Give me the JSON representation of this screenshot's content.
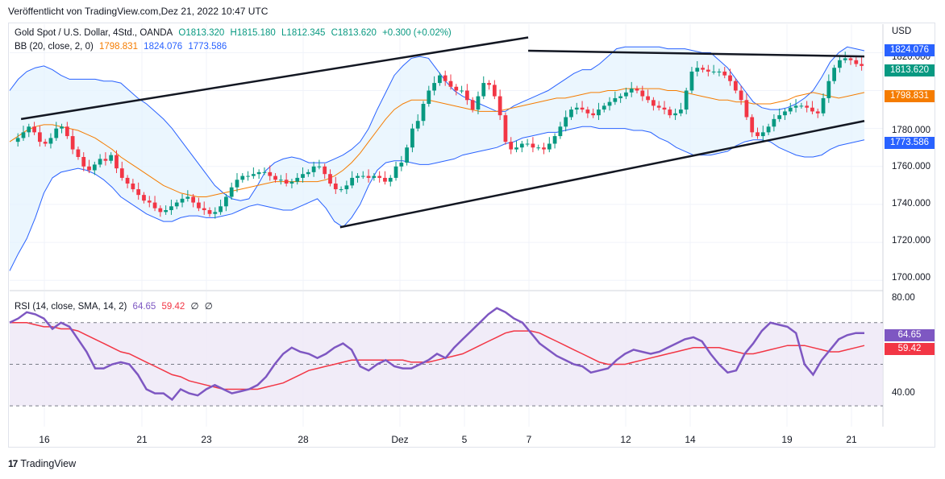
{
  "header": {
    "published": "Veröffentlicht von TradingView.com,Dez 21, 2022 10:47 UTC"
  },
  "legend": {
    "symbol": "Gold Spot / U.S. Dollar, 4Std., OANDA",
    "o": "O1813.320",
    "h": "H1815.180",
    "l": "L1812.345",
    "c": "C1813.620",
    "chg": "+0.300 (+0.02%)",
    "bb_label": "BB (20, close, 2, 0)",
    "bb_basis": "1798.831",
    "bb_upper": "1824.076",
    "bb_lower": "1773.586",
    "rsi_label": "RSI (14, close, SMA, 14, 2)",
    "rsi_value": "64.65",
    "rsi_sma": "59.42",
    "rsi_extra1": "∅",
    "rsi_extra2": "∅"
  },
  "price_axis": {
    "currency": "USD",
    "ticks": [
      "1820.000",
      "1780.000",
      "1760.000",
      "1740.000",
      "1720.000",
      "1700.000"
    ],
    "tags": {
      "upper": "1824.076",
      "last": "1813.620",
      "basis": "1798.831",
      "lower": "1773.586"
    }
  },
  "rsi_axis": {
    "ticks": [
      "80.00",
      "40.00"
    ],
    "tags": {
      "rsi": "64.65",
      "sma": "59.42"
    }
  },
  "time_axis": [
    "16",
    "21",
    "23",
    "28",
    "Dez",
    "5",
    "7",
    "12",
    "14",
    "19",
    "21"
  ],
  "footer": {
    "brand": "TradingView"
  },
  "colors": {
    "up": "#089981",
    "down": "#f23645",
    "bb_upper": "#2962ff",
    "bb_basis": "#f57c00",
    "bb_fill": "#e3f2fd",
    "rsi": "#7e57c2",
    "rsi_sma": "#f23645",
    "rsi_band": "#ede7f6",
    "trendline": "#131722"
  },
  "chart_data": [
    {
      "type": "candlestick",
      "title": "Gold Spot / U.S. Dollar, 4Std., OANDA",
      "ylabel": "USD",
      "ylim": [
        1695,
        1835
      ],
      "x_labels": [
        "16",
        "21",
        "23",
        "28",
        "Dez",
        "5",
        "7",
        "12",
        "14",
        "19",
        "21"
      ],
      "close_series": [
        1773,
        1775,
        1778,
        1781,
        1778,
        1773,
        1772,
        1775,
        1780,
        1781,
        1776,
        1769,
        1765,
        1760,
        1758,
        1761,
        1764,
        1763,
        1766,
        1759,
        1754,
        1751,
        1748,
        1745,
        1742,
        1741,
        1738,
        1736,
        1737,
        1739,
        1741,
        1743,
        1744,
        1741,
        1738,
        1737,
        1735,
        1736,
        1739,
        1744,
        1749,
        1753,
        1755,
        1755,
        1756,
        1757,
        1757,
        1755,
        1753,
        1753,
        1751,
        1752,
        1754,
        1756,
        1757,
        1760,
        1760,
        1756,
        1751,
        1748,
        1748,
        1750,
        1754,
        1755,
        1755,
        1754,
        1755,
        1754,
        1752,
        1754,
        1760,
        1762,
        1770,
        1780,
        1784,
        1793,
        1800,
        1804,
        1808,
        1805,
        1802,
        1800,
        1800,
        1795,
        1790,
        1797,
        1804,
        1803,
        1797,
        1787,
        1773,
        1769,
        1770,
        1772,
        1772,
        1770,
        1770,
        1769,
        1772,
        1776,
        1781,
        1786,
        1790,
        1791,
        1790,
        1788,
        1787,
        1790,
        1792,
        1794,
        1796,
        1797,
        1799,
        1801,
        1800,
        1797,
        1795,
        1792,
        1791,
        1790,
        1787,
        1788,
        1790,
        1800,
        1810,
        1812,
        1811,
        1810,
        1810,
        1810,
        1808,
        1805,
        1800,
        1795,
        1786,
        1778,
        1776,
        1778,
        1781,
        1785,
        1787,
        1789,
        1791,
        1792,
        1792,
        1791,
        1789,
        1788,
        1796,
        1805,
        1812,
        1816,
        1817,
        1816,
        1814,
        1813
      ],
      "bb_upper_series": [
        1800,
        1806,
        1810,
        1812,
        1813,
        1811,
        1808,
        1806,
        1806,
        1806,
        1806,
        1805,
        1805,
        1804,
        1800,
        1796,
        1793,
        1789,
        1785,
        1780,
        1774,
        1768,
        1762,
        1756,
        1750,
        1746,
        1743,
        1742,
        1743,
        1750,
        1758,
        1762,
        1764,
        1765,
        1764,
        1762,
        1762,
        1762,
        1764,
        1766,
        1769,
        1773,
        1780,
        1790,
        1799,
        1808,
        1813,
        1817,
        1818,
        1817,
        1811,
        1805,
        1800,
        1797,
        1795,
        1793,
        1791,
        1789,
        1789,
        1792,
        1794,
        1796,
        1798,
        1800,
        1803,
        1806,
        1809,
        1811,
        1811,
        1814,
        1818,
        1822,
        1823,
        1823,
        1823,
        1823,
        1823,
        1822,
        1822,
        1822,
        1821,
        1820,
        1820,
        1816,
        1812,
        1806,
        1800,
        1794,
        1791,
        1790,
        1790,
        1791,
        1793,
        1796,
        1800,
        1807,
        1815,
        1820,
        1823,
        1822,
        1821
      ],
      "bb_basis_series": [
        1773,
        1776,
        1779,
        1781,
        1782,
        1782,
        1781,
        1780,
        1779,
        1777,
        1775,
        1772,
        1769,
        1765,
        1762,
        1759,
        1756,
        1753,
        1750,
        1748,
        1746,
        1745,
        1744,
        1744,
        1745,
        1746,
        1747,
        1748,
        1749,
        1750,
        1751,
        1752,
        1752,
        1752,
        1752,
        1752,
        1752,
        1753,
        1755,
        1758,
        1762,
        1767,
        1773,
        1779,
        1785,
        1790,
        1793,
        1795,
        1795,
        1795,
        1794,
        1793,
        1792,
        1791,
        1790,
        1789,
        1789,
        1789,
        1790,
        1791,
        1792,
        1793,
        1794,
        1795,
        1796,
        1796,
        1797,
        1798,
        1799,
        1799,
        1800,
        1800,
        1801,
        1801,
        1801,
        1801,
        1801,
        1800,
        1800,
        1799,
        1798,
        1797,
        1796,
        1795,
        1795,
        1794,
        1794,
        1793,
        1793,
        1793,
        1794,
        1795,
        1797,
        1798,
        1799,
        1798,
        1797,
        1796,
        1797,
        1798,
        1799
      ],
      "bb_lower_series": [
        1705,
        1714,
        1722,
        1733,
        1746,
        1754,
        1757,
        1758,
        1759,
        1758,
        1756,
        1753,
        1749,
        1744,
        1741,
        1738,
        1735,
        1733,
        1731,
        1731,
        1733,
        1734,
        1734,
        1733,
        1733,
        1734,
        1735,
        1737,
        1739,
        1740,
        1739,
        1738,
        1737,
        1737,
        1739,
        1741,
        1743,
        1738,
        1731,
        1728,
        1733,
        1740,
        1750,
        1758,
        1762,
        1763,
        1763,
        1762,
        1761,
        1761,
        1762,
        1763,
        1764,
        1766,
        1767,
        1768,
        1769,
        1770,
        1772,
        1773,
        1775,
        1776,
        1777,
        1778,
        1778,
        1779,
        1780,
        1781,
        1781,
        1780,
        1780,
        1780,
        1780,
        1779,
        1779,
        1778,
        1775,
        1773,
        1770,
        1768,
        1766,
        1766,
        1766,
        1767,
        1768,
        1771,
        1773,
        1774,
        1774,
        1773,
        1770,
        1768,
        1766,
        1765,
        1765,
        1766,
        1769,
        1771,
        1772,
        1773,
        1774
      ],
      "trendlines": [
        {
          "from": [
            1,
            1785
          ],
          "to": [
            45.5,
            1828
          ]
        },
        {
          "from": [
            29,
            1728
          ],
          "to": [
            75,
            1784
          ]
        },
        {
          "from": [
            45.5,
            1821
          ],
          "to": [
            75,
            1818
          ]
        }
      ],
      "last": {
        "open": 1813.32,
        "high": 1815.18,
        "low": 1812.345,
        "close": 1813.62,
        "change": 0.3,
        "change_pct": 0.02
      }
    },
    {
      "type": "line",
      "title": "RSI (14, close, SMA, 14, 2)",
      "ylim": [
        20,
        85
      ],
      "band": [
        30,
        70
      ],
      "series": [
        {
          "name": "RSI",
          "values": [
            70,
            72,
            75,
            74,
            72,
            67,
            70,
            68,
            62,
            56,
            48,
            48,
            50,
            51,
            50,
            45,
            38,
            36,
            36,
            33,
            38,
            36,
            35,
            38,
            40,
            38,
            36,
            37,
            38,
            40,
            44,
            50,
            55,
            58,
            56,
            55,
            53,
            55,
            58,
            60,
            57,
            49,
            47,
            50,
            52,
            49,
            48,
            48,
            50,
            52,
            55,
            53,
            58,
            62,
            66,
            70,
            74,
            77,
            75,
            72,
            70,
            65,
            60,
            57,
            54,
            52,
            50,
            49,
            46,
            47,
            48,
            52,
            55,
            57,
            56,
            55,
            56,
            58,
            60,
            62,
            63,
            61,
            55,
            50,
            46,
            47,
            55,
            60,
            66,
            70,
            69,
            68,
            65,
            50,
            45,
            52,
            57,
            62,
            64,
            65,
            65
          ]
        },
        {
          "name": "SMA",
          "values": [
            70,
            70,
            70,
            69,
            68,
            68,
            67,
            67,
            66,
            64,
            62,
            60,
            58,
            56,
            55,
            53,
            51,
            49,
            47,
            45,
            44,
            42,
            41,
            40,
            39,
            38,
            38,
            38,
            38,
            38,
            39,
            40,
            41,
            43,
            45,
            47,
            48,
            49,
            50,
            51,
            52,
            52,
            52,
            52,
            52,
            52,
            52,
            51,
            51,
            51,
            52,
            53,
            54,
            55,
            57,
            59,
            61,
            63,
            65,
            66,
            66,
            66,
            65,
            63,
            61,
            59,
            57,
            55,
            53,
            51,
            50,
            50,
            50,
            51,
            52,
            53,
            54,
            55,
            56,
            57,
            58,
            58,
            58,
            58,
            57,
            56,
            55,
            55,
            56,
            57,
            58,
            59,
            59,
            59,
            58,
            57,
            56,
            56,
            57,
            58,
            59
          ]
        }
      ]
    }
  ]
}
